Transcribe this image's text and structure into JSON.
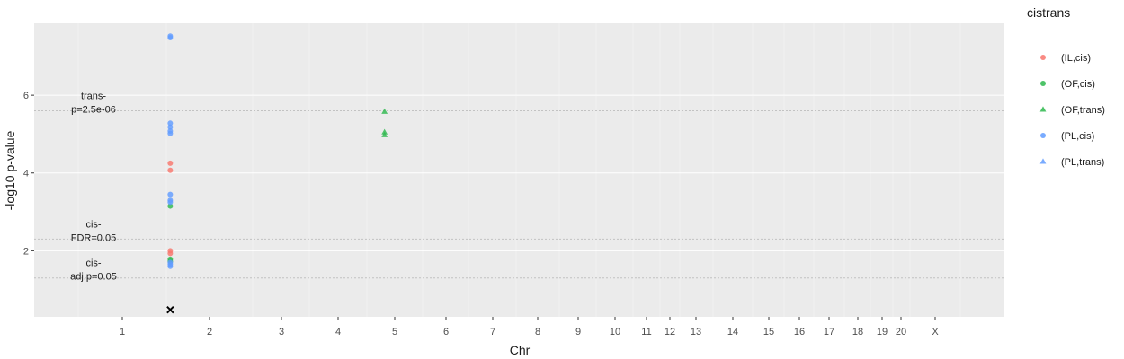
{
  "chart_data": {
    "type": "scatter",
    "xlabel": "Chr",
    "ylabel": "-log10 p-value",
    "ylim": [
      0.3,
      7.85
    ],
    "yticks": [
      2,
      4,
      6
    ],
    "grid": true,
    "legend_placement": "right",
    "legend_title": "cistrans",
    "chromosomes": [
      "1",
      "2",
      "3",
      "4",
      "5",
      "6",
      "7",
      "8",
      "9",
      "10",
      "11",
      "12",
      "13",
      "14",
      "15",
      "16",
      "17",
      "18",
      "19",
      "20",
      "X"
    ],
    "series": [
      {
        "name": "(IL,cis)",
        "color": "#F8766D",
        "shape": "circle",
        "points": [
          [
            1.55,
            4.25
          ],
          [
            1.55,
            4.07
          ],
          [
            1.55,
            2.0
          ],
          [
            1.55,
            1.93
          ]
        ]
      },
      {
        "name": "(OF,cis)",
        "color": "#2EB84E",
        "shape": "circle",
        "points": [
          [
            1.55,
            3.15
          ],
          [
            1.55,
            1.78
          ],
          [
            1.55,
            1.73
          ]
        ]
      },
      {
        "name": "(OF,trans)",
        "color": "#2EB84E",
        "shape": "triangle",
        "points": [
          [
            4.82,
            5.58
          ],
          [
            4.82,
            5.05
          ],
          [
            4.82,
            4.98
          ]
        ]
      },
      {
        "name": "(PL,cis)",
        "color": "#619CFF",
        "shape": "circle",
        "points": [
          [
            1.55,
            7.52
          ],
          [
            1.55,
            7.48
          ],
          [
            1.55,
            5.28
          ],
          [
            1.55,
            5.18
          ],
          [
            1.55,
            5.08
          ],
          [
            1.55,
            5.02
          ],
          [
            1.55,
            3.45
          ],
          [
            1.55,
            3.3
          ],
          [
            1.55,
            3.25
          ],
          [
            1.55,
            1.7
          ],
          [
            1.55,
            1.65
          ],
          [
            1.55,
            1.6
          ]
        ]
      },
      {
        "name": "(PL,trans)",
        "color": "#619CFF",
        "shape": "triangle",
        "points": []
      }
    ],
    "special_points": [
      {
        "label": "x-mark",
        "x": 1.55,
        "y": 0.48
      }
    ],
    "thresholds": [
      {
        "line1": "trans-",
        "line2": "p=2.5e-06",
        "y": 5.6
      },
      {
        "line1": "cis-",
        "line2": "FDR=0.05",
        "y": 2.3
      },
      {
        "line1": "cis-",
        "line2": "adj.p=0.05",
        "y": 1.3
      }
    ]
  }
}
